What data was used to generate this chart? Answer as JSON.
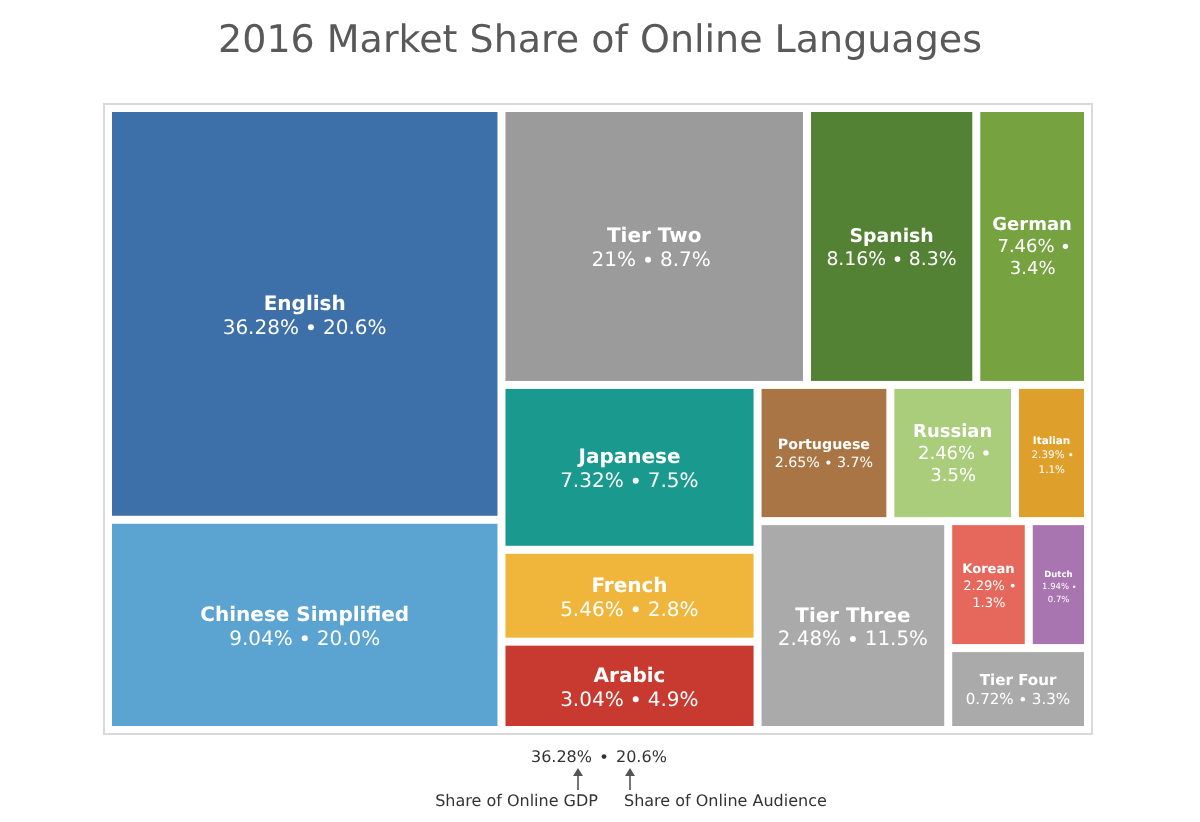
{
  "chart_data": {
    "type": "other",
    "title": "2016 Market Share of Online Languages",
    "categories": [
      "English",
      "Chinese Simplified",
      "Tier Two",
      "Spanish",
      "German",
      "Japanese",
      "French",
      "Arabic",
      "Portuguese",
      "Russian",
      "Italian",
      "Tier Three",
      "Korean",
      "Dutch",
      "Tier Four"
    ],
    "series": [
      {
        "name": "Share of Online GDP",
        "colors": [
          "#3d6fa8",
          "#5ba3d0",
          "#9b9b9b",
          "#548235",
          "#76a240",
          "#1a9a8e",
          "#f0b63c",
          "#c8392f",
          "#a97545",
          "#a9cd7a",
          "#dea02a",
          "#aaaaaa",
          "#e6675c",
          "#a875b0",
          "#aaaaaa"
        ],
        "values": [
          36.28,
          9.04,
          21,
          8.16,
          7.46,
          7.32,
          5.46,
          3.04,
          2.65,
          2.46,
          2.39,
          2.48,
          2.29,
          1.94,
          0.72
        ],
        "value_labels": [
          "36.28%",
          "9.04%",
          "21%",
          "8.16%",
          "7.46%",
          "7.32%",
          "5.46%",
          "3.04%",
          "2.65%",
          "2.46%",
          "2.39%",
          "2.48%",
          "2.29%",
          "1.94%",
          "0.72%"
        ]
      },
      {
        "name": "Share of Online Audience",
        "values": [
          20.6,
          20.0,
          8.7,
          8.3,
          3.4,
          7.5,
          2.8,
          4.9,
          3.7,
          3.5,
          1.1,
          11.5,
          1.3,
          0.7,
          3.3
        ],
        "value_labels": [
          "20.6%",
          "20.0%",
          "8.7%",
          "8.3%",
          "3.4%",
          "7.5%",
          "2.8%",
          "4.9%",
          "3.7%",
          "3.5%",
          "1.1%",
          "11.5%",
          "1.3%",
          "0.7%",
          "3.3%"
        ]
      }
    ]
  }
}
